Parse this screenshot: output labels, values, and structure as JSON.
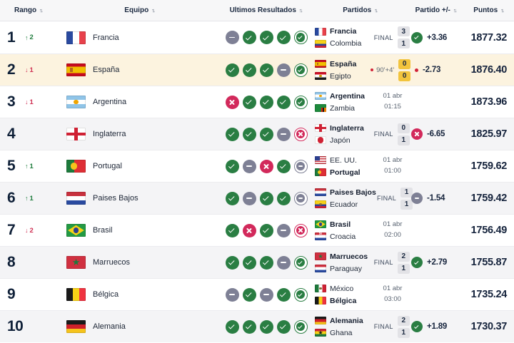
{
  "labels": {
    "final": "FINAL",
    "sort_icon": "sort-arrows-icon",
    "up_arrow": "↑",
    "down_arrow": "↓"
  },
  "colors": {
    "win": "#2a7e43",
    "draw": "#7e8095",
    "loss": "#d2295b",
    "rank_up": "#1e7c3c",
    "rank_down": "#cf3053",
    "highlight_row": "#fcf3df",
    "stripe_row": "#f4f4f6",
    "live_score_box": "#f2c43d",
    "score_box": "#e2e2e6",
    "live_dot": "#d12438",
    "text_navy": "#15233c"
  },
  "header": {
    "columns": [
      {
        "label": "Rango"
      },
      {
        "label": "Equipo"
      },
      {
        "label": "Ultimos Resultados"
      },
      {
        "label": "Partidos"
      },
      {
        "label": "Partido +/-"
      },
      {
        "label": "Puntos"
      }
    ]
  },
  "flags": {
    "fr": {
      "t": "v",
      "s": [
        "#2a4aa0",
        "#ffffff",
        "#e8414b"
      ]
    },
    "co": {
      "t": "h",
      "s": [
        "#f7d117",
        "#2a3f9e",
        "#cf2134"
      ],
      "w": [
        0.5,
        0.25,
        0.25
      ]
    },
    "es": {
      "t": "h",
      "s": [
        "#c60b1e",
        "#f1bf00",
        "#c60b1e"
      ],
      "w": [
        0.25,
        0.5,
        0.25
      ],
      "ov": [
        {
          "k": "box",
          "c": "#b5651d",
          "l": 0.18,
          "tp": 0.34,
          "wd": 0.16,
          "ht": 0.32
        }
      ]
    },
    "eg": {
      "t": "h",
      "s": [
        "#ce1126",
        "#ffffff",
        "#1a1a1a"
      ],
      "ov": [
        {
          "k": "circle",
          "c": "#c09300",
          "r": 0.14
        }
      ]
    },
    "ar": {
      "t": "h",
      "s": [
        "#8fc4e8",
        "#ffffff",
        "#8fc4e8"
      ],
      "ov": [
        {
          "k": "circle",
          "c": "#f0a500",
          "r": 0.17
        }
      ]
    },
    "zm": {
      "t": "h",
      "s": [
        "#1d8a3c"
      ],
      "ov": [
        {
          "k": "box",
          "c": "#de2010",
          "l": 0.58,
          "tp": 0.45,
          "wd": 0.13,
          "ht": 0.55
        },
        {
          "k": "box",
          "c": "#1a1a1a",
          "l": 0.71,
          "tp": 0.45,
          "wd": 0.13,
          "ht": 0.55
        },
        {
          "k": "box",
          "c": "#ef7d00",
          "l": 0.84,
          "tp": 0.45,
          "wd": 0.13,
          "ht": 0.55
        }
      ]
    },
    "en": {
      "t": "h",
      "s": [
        "#ffffff"
      ],
      "ov": [
        {
          "k": "cross",
          "c": "#cf2134"
        }
      ]
    },
    "jp": {
      "t": "h",
      "s": [
        "#ffffff"
      ],
      "ov": [
        {
          "k": "circle",
          "c": "#cf2134",
          "r": 0.38
        }
      ]
    },
    "us": {
      "t": "h",
      "s": [
        "#c8353f",
        "#ffffff",
        "#c8353f",
        "#ffffff",
        "#c8353f",
        "#ffffff",
        "#c8353f"
      ],
      "ov": [
        {
          "k": "box",
          "c": "#2b3f8e",
          "l": 0,
          "tp": 0,
          "wd": 0.45,
          "ht": 0.55
        }
      ]
    },
    "pt": {
      "t": "v",
      "s": [
        "#1d7a3c",
        "#de2e35"
      ],
      "w": [
        0.4,
        0.6
      ],
      "ov": [
        {
          "k": "circle",
          "c": "#f5c31c",
          "r": 0.26,
          "x": 0.4
        }
      ]
    },
    "nl": {
      "t": "h",
      "s": [
        "#c8313e",
        "#ffffff",
        "#2a4aa0"
      ]
    },
    "ec": {
      "t": "h",
      "s": [
        "#f7d117",
        "#2a3f9e",
        "#cf2134"
      ],
      "w": [
        0.5,
        0.25,
        0.25
      ],
      "ov": [
        {
          "k": "circle",
          "c": "#8a6d3b",
          "r": 0.16
        }
      ]
    },
    "br": {
      "t": "h",
      "s": [
        "#239a44"
      ],
      "ov": [
        {
          "k": "diamond",
          "c": "#f7d117"
        },
        {
          "k": "circle",
          "c": "#2b3f8e",
          "r": 0.2
        }
      ]
    },
    "hr": {
      "t": "h",
      "s": [
        "#d03040",
        "#ffffff",
        "#2a4aa0"
      ],
      "ov": [
        {
          "k": "checker",
          "c": "#d03040"
        }
      ]
    },
    "ma": {
      "t": "h",
      "s": [
        "#d03040"
      ],
      "ov": [
        {
          "k": "star",
          "c": "#1d7a3c"
        }
      ]
    },
    "py": {
      "t": "h",
      "s": [
        "#d03040",
        "#ffffff",
        "#2a4aa0"
      ]
    },
    "mx": {
      "t": "v",
      "s": [
        "#1d7a3c",
        "#ffffff",
        "#cf2134"
      ],
      "ov": [
        {
          "k": "circle",
          "c": "#8a6d3b",
          "r": 0.15
        }
      ]
    },
    "be": {
      "t": "v",
      "s": [
        "#1a1a1a",
        "#f7d117",
        "#ef3340"
      ]
    },
    "de": {
      "t": "h",
      "s": [
        "#1a1a1a",
        "#d0202a",
        "#f5c31c"
      ]
    },
    "gh": {
      "t": "h",
      "s": [
        "#cf2134",
        "#f7d117",
        "#1d7a3c"
      ],
      "ov": [
        {
          "k": "star",
          "c": "#1a1a1a"
        }
      ]
    }
  },
  "rows": [
    {
      "rank": "1",
      "movement": {
        "dir": "up",
        "value": "2"
      },
      "team": {
        "name": "Francia",
        "flag": "fr"
      },
      "results": [
        "d",
        "w",
        "w",
        "w",
        "w"
      ],
      "match": {
        "home": {
          "name": "Francia",
          "flag": "fr",
          "bold": true
        },
        "away": {
          "name": "Colombia",
          "flag": "co",
          "bold": false
        },
        "status": "final",
        "score": [
          "3",
          "1"
        ]
      },
      "delta": {
        "icon": "w",
        "value": "+3.36"
      },
      "points": "1877.32",
      "highlight": false
    },
    {
      "rank": "2",
      "movement": {
        "dir": "down",
        "value": "1"
      },
      "team": {
        "name": "España",
        "flag": "es"
      },
      "results": [
        "w",
        "w",
        "w",
        "d",
        "w"
      ],
      "match": {
        "home": {
          "name": "España",
          "flag": "es",
          "bold": true
        },
        "away": {
          "name": "Egipto",
          "flag": "eg",
          "bold": false
        },
        "status": "live",
        "live_time": "90'+4'",
        "score": [
          "0",
          "0"
        ]
      },
      "delta": {
        "icon": "dot",
        "value": "-2.73"
      },
      "points": "1876.40",
      "highlight": true
    },
    {
      "rank": "3",
      "movement": {
        "dir": "down",
        "value": "1"
      },
      "team": {
        "name": "Argentina",
        "flag": "ar"
      },
      "results": [
        "l",
        "w",
        "w",
        "w",
        "w"
      ],
      "match": {
        "home": {
          "name": "Argentina",
          "flag": "ar",
          "bold": true
        },
        "away": {
          "name": "Zambia",
          "flag": "zm",
          "bold": false
        },
        "status": "sched",
        "date": "01 abr",
        "time": "01:15"
      },
      "delta": null,
      "points": "1873.96",
      "highlight": false
    },
    {
      "rank": "4",
      "movement": null,
      "team": {
        "name": "Inglaterra",
        "flag": "en"
      },
      "results": [
        "w",
        "w",
        "w",
        "d",
        "l"
      ],
      "match": {
        "home": {
          "name": "Inglaterra",
          "flag": "en",
          "bold": true
        },
        "away": {
          "name": "Japón",
          "flag": "jp",
          "bold": false
        },
        "status": "final",
        "score": [
          "0",
          "1"
        ]
      },
      "delta": {
        "icon": "l",
        "value": "-6.65"
      },
      "points": "1825.97",
      "highlight": false
    },
    {
      "rank": "5",
      "movement": {
        "dir": "up",
        "value": "1"
      },
      "team": {
        "name": "Portugal",
        "flag": "pt"
      },
      "results": [
        "w",
        "d",
        "l",
        "w",
        "d"
      ],
      "match": {
        "home": {
          "name": "EE. UU.",
          "flag": "us",
          "bold": false
        },
        "away": {
          "name": "Portugal",
          "flag": "pt",
          "bold": true
        },
        "status": "sched",
        "date": "01 abr",
        "time": "01:00"
      },
      "delta": null,
      "points": "1759.62",
      "highlight": false
    },
    {
      "rank": "6",
      "movement": {
        "dir": "up",
        "value": "1"
      },
      "team": {
        "name": "Paises Bajos",
        "flag": "nl"
      },
      "results": [
        "w",
        "d",
        "w",
        "w",
        "d"
      ],
      "match": {
        "home": {
          "name": "Paises Bajos",
          "flag": "nl",
          "bold": true
        },
        "away": {
          "name": "Ecuador",
          "flag": "ec",
          "bold": false
        },
        "status": "final",
        "score": [
          "1",
          "1"
        ]
      },
      "delta": {
        "icon": "d",
        "value": "-1.54"
      },
      "points": "1759.42",
      "highlight": false
    },
    {
      "rank": "7",
      "movement": {
        "dir": "down",
        "value": "2"
      },
      "team": {
        "name": "Brasil",
        "flag": "br"
      },
      "results": [
        "w",
        "l",
        "w",
        "d",
        "l"
      ],
      "match": {
        "home": {
          "name": "Brasil",
          "flag": "br",
          "bold": true
        },
        "away": {
          "name": "Croacia",
          "flag": "hr",
          "bold": false
        },
        "status": "sched",
        "date": "01 abr",
        "time": "02:00"
      },
      "delta": null,
      "points": "1756.49",
      "highlight": false
    },
    {
      "rank": "8",
      "movement": null,
      "team": {
        "name": "Marruecos",
        "flag": "ma"
      },
      "results": [
        "w",
        "w",
        "w",
        "d",
        "w"
      ],
      "match": {
        "home": {
          "name": "Marruecos",
          "flag": "ma",
          "bold": true
        },
        "away": {
          "name": "Paraguay",
          "flag": "py",
          "bold": false
        },
        "status": "final",
        "score": [
          "2",
          "1"
        ]
      },
      "delta": {
        "icon": "w",
        "value": "+2.79"
      },
      "points": "1755.87",
      "highlight": false
    },
    {
      "rank": "9",
      "movement": null,
      "team": {
        "name": "Bélgica",
        "flag": "be"
      },
      "results": [
        "d",
        "w",
        "d",
        "w",
        "w"
      ],
      "match": {
        "home": {
          "name": "México",
          "flag": "mx",
          "bold": false
        },
        "away": {
          "name": "Bélgica",
          "flag": "be",
          "bold": true
        },
        "status": "sched",
        "date": "01 abr",
        "time": "03:00"
      },
      "delta": null,
      "points": "1735.24",
      "highlight": false
    },
    {
      "rank": "10",
      "movement": null,
      "team": {
        "name": "Alemania",
        "flag": "de"
      },
      "results": [
        "w",
        "w",
        "w",
        "w",
        "w"
      ],
      "match": {
        "home": {
          "name": "Alemania",
          "flag": "de",
          "bold": true
        },
        "away": {
          "name": "Ghana",
          "flag": "gh",
          "bold": false
        },
        "status": "final",
        "score": [
          "2",
          "1"
        ]
      },
      "delta": {
        "icon": "w",
        "value": "+1.89"
      },
      "points": "1730.37",
      "highlight": false
    }
  ]
}
